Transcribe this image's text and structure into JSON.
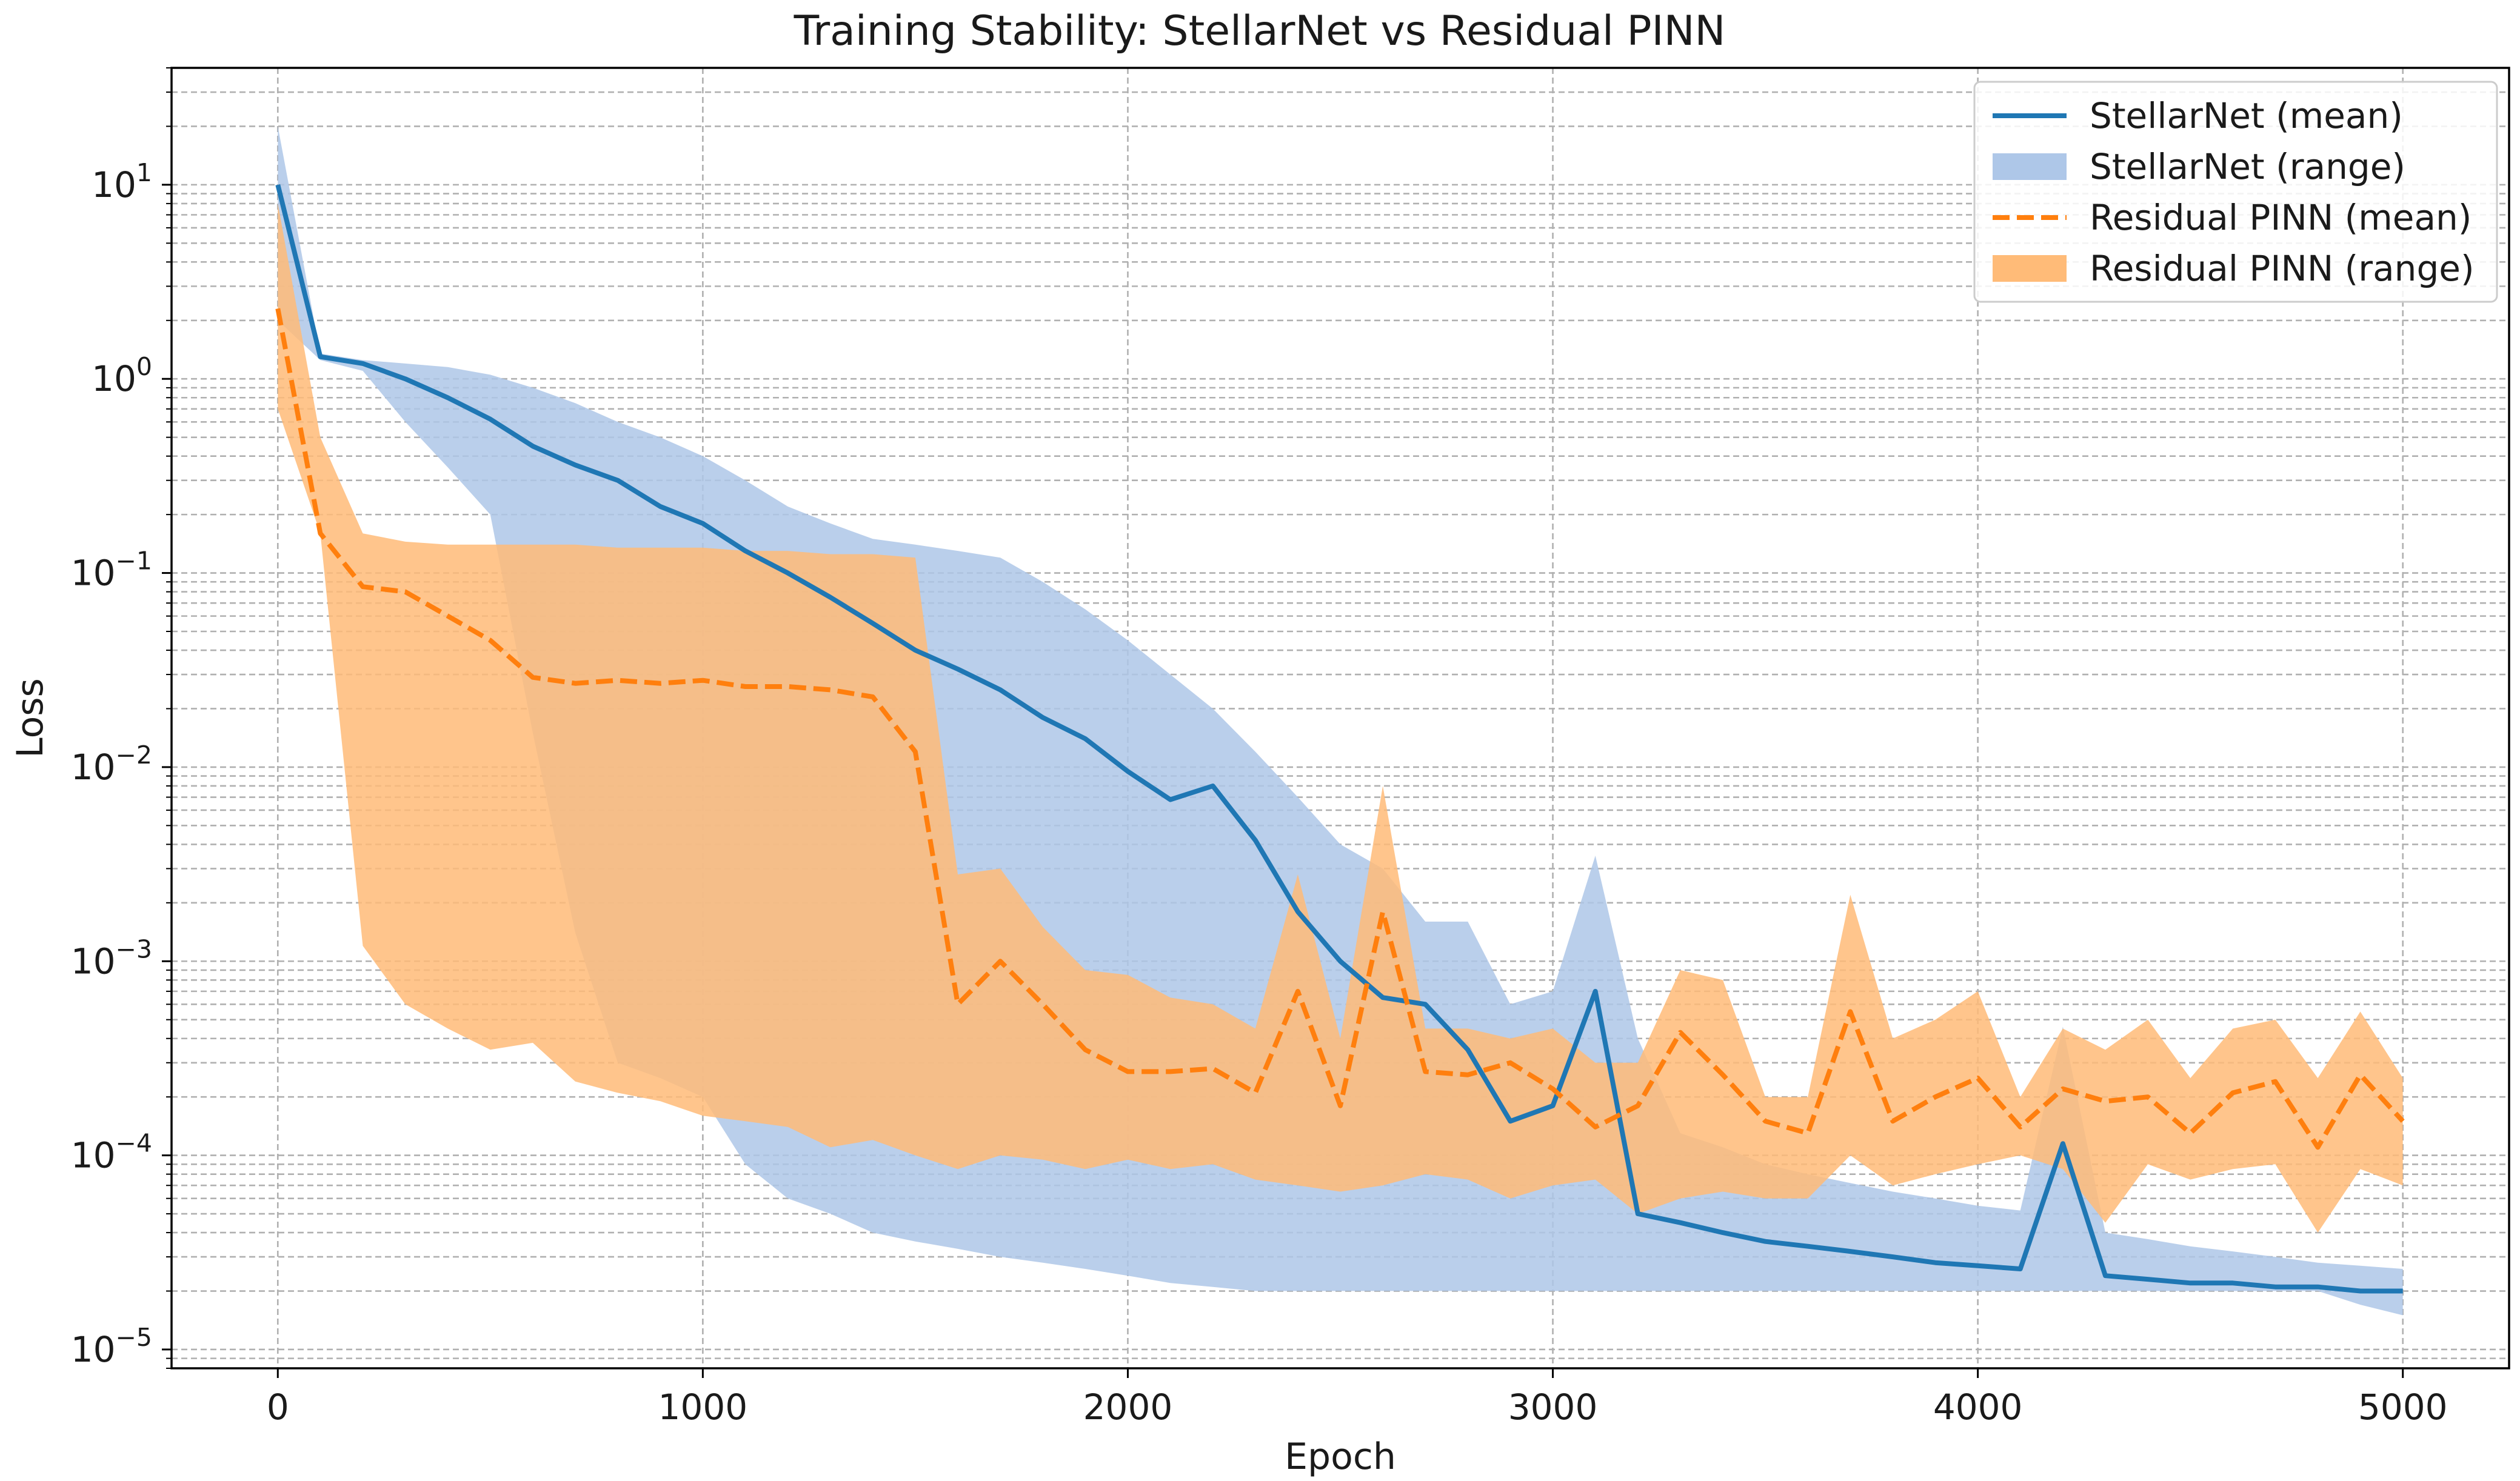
{
  "chart_data": {
    "type": "line",
    "title": "Training Stability: StellarNet vs Residual PINN",
    "xlabel": "Epoch",
    "ylabel": "Loss",
    "yscale": "log",
    "xlim": [
      -250,
      5250
    ],
    "ylim": [
      8e-06,
      40
    ],
    "grid": true,
    "legend_position": "top-right",
    "x_ticks": [
      {
        "value": 0,
        "label": "0"
      },
      {
        "value": 1000,
        "label": "1000"
      },
      {
        "value": 2000,
        "label": "2000"
      },
      {
        "value": 3000,
        "label": "3000"
      },
      {
        "value": 4000,
        "label": "4000"
      },
      {
        "value": 5000,
        "label": "5000"
      }
    ],
    "y_ticks": [
      {
        "value": 1e-05,
        "base": "10",
        "exp": "−5"
      },
      {
        "value": 0.0001,
        "base": "10",
        "exp": "−4"
      },
      {
        "value": 0.001,
        "base": "10",
        "exp": "−3"
      },
      {
        "value": 0.01,
        "base": "10",
        "exp": "−2"
      },
      {
        "value": 0.1,
        "base": "10",
        "exp": "−1"
      },
      {
        "value": 1,
        "base": "10",
        "exp": "0"
      },
      {
        "value": 10,
        "base": "10",
        "exp": "1"
      }
    ],
    "x": [
      0,
      100,
      200,
      300,
      400,
      500,
      600,
      700,
      800,
      900,
      1000,
      1100,
      1200,
      1300,
      1400,
      1500,
      1600,
      1700,
      1800,
      1900,
      2000,
      2100,
      2200,
      2300,
      2400,
      2500,
      2600,
      2700,
      2800,
      2900,
      3000,
      3100,
      3200,
      3300,
      3400,
      3500,
      3600,
      3700,
      3800,
      3900,
      4000,
      4100,
      4200,
      4300,
      4400,
      4500,
      4600,
      4700,
      4800,
      4900,
      5000
    ],
    "series": [
      {
        "name": "StellarNet (range)",
        "kind": "band",
        "color": "#aec7e8",
        "lower": [
          2.0,
          1.25,
          1.1,
          0.6,
          0.35,
          0.2,
          0.015,
          0.0014,
          0.0003,
          0.00025,
          0.0002,
          9e-05,
          6e-05,
          5e-05,
          4e-05,
          3.6e-05,
          3.3e-05,
          3e-05,
          2.8e-05,
          2.6e-05,
          2.4e-05,
          2.2e-05,
          2.1e-05,
          2e-05,
          2e-05,
          2e-05,
          2e-05,
          2e-05,
          2e-05,
          2e-05,
          2e-05,
          2e-05,
          2e-05,
          2e-05,
          2e-05,
          2e-05,
          2e-05,
          2e-05,
          2e-05,
          2e-05,
          2e-05,
          2e-05,
          2e-05,
          2e-05,
          2e-05,
          2e-05,
          2e-05,
          2e-05,
          2e-05,
          1.7e-05,
          1.5e-05
        ],
        "upper": [
          20.0,
          1.35,
          1.25,
          1.2,
          1.15,
          1.05,
          0.9,
          0.75,
          0.6,
          0.5,
          0.4,
          0.3,
          0.22,
          0.18,
          0.15,
          0.14,
          0.13,
          0.12,
          0.09,
          0.065,
          0.045,
          0.03,
          0.02,
          0.012,
          0.007,
          0.004,
          0.003,
          0.0016,
          0.0016,
          0.0006,
          0.0007,
          0.0035,
          0.0004,
          0.00013,
          0.00011,
          9e-05,
          8e-05,
          7.2e-05,
          6.5e-05,
          6e-05,
          5.5e-05,
          5.2e-05,
          0.00046,
          4e-05,
          3.7e-05,
          3.4e-05,
          3.2e-05,
          3e-05,
          2.8e-05,
          2.7e-05,
          2.6e-05
        ]
      },
      {
        "name": "Residual PINN (range)",
        "kind": "band",
        "color": "#ffbb78",
        "lower": [
          0.7,
          0.16,
          0.0012,
          0.0006,
          0.00045,
          0.00035,
          0.00038,
          0.00024,
          0.00021,
          0.00019,
          0.00016,
          0.00015,
          0.00014,
          0.00011,
          0.00012,
          0.0001,
          8.5e-05,
          0.0001,
          9.5e-05,
          8.5e-05,
          9.5e-05,
          8.5e-05,
          9e-05,
          7.5e-05,
          7e-05,
          6.5e-05,
          7e-05,
          8e-05,
          7.5e-05,
          6e-05,
          7e-05,
          7.5e-05,
          5e-05,
          6e-05,
          6.5e-05,
          6e-05,
          6e-05,
          0.0001,
          7e-05,
          8e-05,
          9e-05,
          0.0001,
          8.5e-05,
          4.5e-05,
          9e-05,
          7.5e-05,
          8.5e-05,
          9e-05,
          4e-05,
          8.5e-05,
          7e-05
        ],
        "upper": [
          8.0,
          0.5,
          0.16,
          0.145,
          0.14,
          0.14,
          0.14,
          0.14,
          0.135,
          0.135,
          0.135,
          0.13,
          0.13,
          0.125,
          0.125,
          0.12,
          0.0028,
          0.003,
          0.0015,
          0.0009,
          0.00085,
          0.00065,
          0.0006,
          0.00045,
          0.0028,
          0.0004,
          0.008,
          0.00045,
          0.00045,
          0.0004,
          0.00045,
          0.0003,
          0.0003,
          0.0009,
          0.0008,
          0.0002,
          0.0002,
          0.0022,
          0.0004,
          0.0005,
          0.0007,
          0.0002,
          0.00045,
          0.00035,
          0.0005,
          0.00025,
          0.00045,
          0.0005,
          0.00025,
          0.00055,
          0.00025
        ]
      },
      {
        "name": "StellarNet (mean)",
        "kind": "line",
        "color": "#1f77b4",
        "dash": "solid",
        "values": [
          10.0,
          1.3,
          1.2,
          1.0,
          0.8,
          0.62,
          0.45,
          0.36,
          0.3,
          0.22,
          0.18,
          0.13,
          0.1,
          0.075,
          0.055,
          0.04,
          0.032,
          0.025,
          0.018,
          0.014,
          0.0095,
          0.0068,
          0.008,
          0.0042,
          0.0018,
          0.001,
          0.00065,
          0.0006,
          0.00035,
          0.00015,
          0.00018,
          0.0007,
          5e-05,
          4.5e-05,
          4e-05,
          3.6e-05,
          3.4e-05,
          3.2e-05,
          3e-05,
          2.8e-05,
          2.7e-05,
          2.6e-05,
          0.000115,
          2.4e-05,
          2.3e-05,
          2.2e-05,
          2.2e-05,
          2.1e-05,
          2.1e-05,
          2e-05,
          2e-05
        ]
      },
      {
        "name": "Residual PINN (mean)",
        "kind": "line",
        "color": "#ff7f0e",
        "dash": "dashed",
        "values": [
          2.3,
          0.16,
          0.085,
          0.08,
          0.06,
          0.045,
          0.029,
          0.027,
          0.028,
          0.027,
          0.028,
          0.026,
          0.026,
          0.025,
          0.023,
          0.012,
          0.0006,
          0.001,
          0.0006,
          0.00035,
          0.00027,
          0.00027,
          0.00028,
          0.00021,
          0.0007,
          0.00018,
          0.0018,
          0.00027,
          0.00026,
          0.0003,
          0.00022,
          0.00014,
          0.00018,
          0.00043,
          0.00026,
          0.00015,
          0.00013,
          0.00055,
          0.00015,
          0.0002,
          0.00025,
          0.00014,
          0.00022,
          0.00019,
          0.0002,
          0.00013,
          0.00021,
          0.00024,
          0.00011,
          0.00026,
          0.00015
        ]
      }
    ],
    "legend": [
      {
        "label": "StellarNet (mean)",
        "kind": "line",
        "color": "#1f77b4",
        "dash": "solid"
      },
      {
        "label": "StellarNet (range)",
        "kind": "patch",
        "color": "#aec7e8"
      },
      {
        "label": "Residual PINN (mean)",
        "kind": "line",
        "color": "#ff7f0e",
        "dash": "dashed"
      },
      {
        "label": "Residual PINN (range)",
        "kind": "patch",
        "color": "#ffbb78"
      }
    ]
  }
}
